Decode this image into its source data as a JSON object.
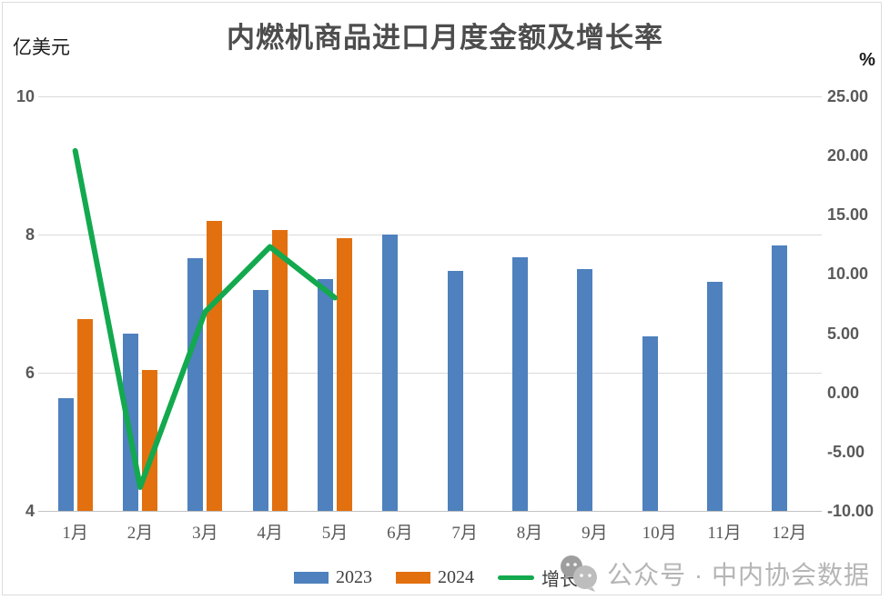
{
  "title": "内燃机商品进口月度金额及增长率",
  "left_axis_unit": "亿美元",
  "right_axis_unit": "%",
  "legend": {
    "series_2023": "2023",
    "series_2024": "2024",
    "growth": "增长率"
  },
  "watermark_text": "公众号 · 中内协会数据",
  "colors": {
    "blue": "#4e81bd",
    "orange": "#e2700f",
    "green": "#13a94e",
    "grid": "#d9d9d9",
    "axis_text": "#595959",
    "watermark": "#b5b5b5"
  },
  "chart_data": {
    "type": "bar",
    "title": "内燃机商品进口月度金额及增长率",
    "categories": [
      "1月",
      "2月",
      "3月",
      "4月",
      "5月",
      "6月",
      "7月",
      "8月",
      "9月",
      "10月",
      "11月",
      "12月"
    ],
    "series": [
      {
        "name": "2023",
        "type": "bar",
        "axis": "left",
        "color": "#4e81bd",
        "values": [
          5.63,
          6.56,
          7.66,
          7.2,
          7.36,
          8.0,
          7.47,
          7.67,
          7.5,
          6.53,
          7.31,
          7.84
        ]
      },
      {
        "name": "2024",
        "type": "bar",
        "axis": "left",
        "color": "#e2700f",
        "values": [
          6.77,
          6.04,
          8.2,
          8.07,
          7.95,
          null,
          null,
          null,
          null,
          null,
          null,
          null
        ]
      },
      {
        "name": "增长率",
        "type": "line",
        "axis": "right",
        "color": "#13a94e",
        "values": [
          20.4,
          -8.0,
          6.8,
          12.3,
          8.0,
          null,
          null,
          null,
          null,
          null,
          null,
          null
        ]
      }
    ],
    "left_axis": {
      "label": "亿美元",
      "min": 4,
      "max": 10,
      "ticks": [
        10,
        8,
        6,
        4
      ]
    },
    "right_axis": {
      "label": "%",
      "min": -10,
      "max": 25,
      "ticks": [
        "25.00",
        "20.00",
        "15.00",
        "10.00",
        "5.00",
        "0.00",
        "-5.00",
        "-10.00"
      ]
    },
    "grid": true,
    "legend_position": "bottom"
  }
}
